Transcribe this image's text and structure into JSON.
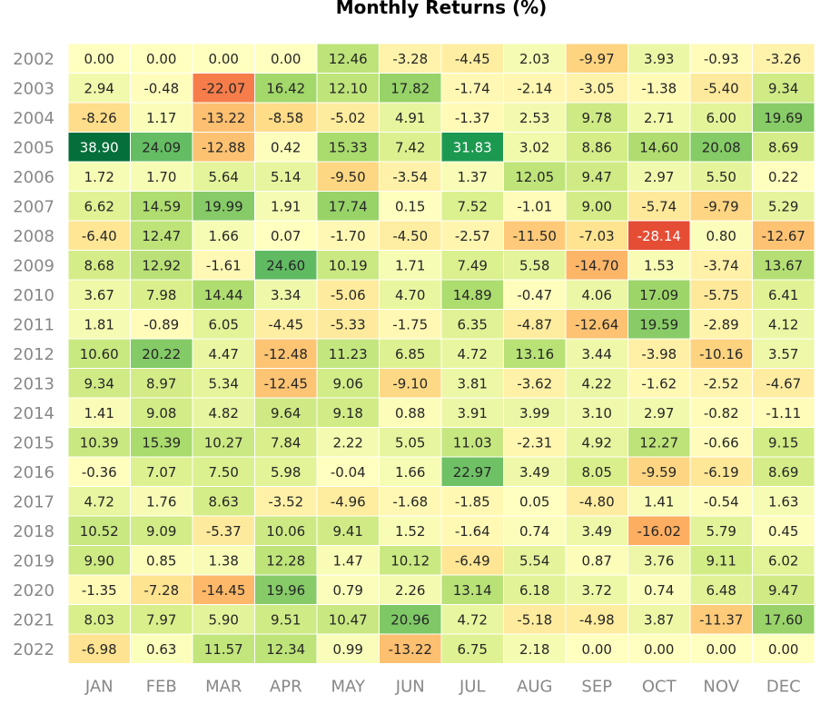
{
  "chart_data": {
    "type": "heatmap",
    "title": "Monthly Returns (%)",
    "xlabel": "",
    "ylabel": "",
    "x": [
      "JAN",
      "FEB",
      "MAR",
      "APR",
      "MAY",
      "JUN",
      "JUL",
      "AUG",
      "SEP",
      "OCT",
      "NOV",
      "DEC"
    ],
    "y": [
      "2002",
      "2003",
      "2004",
      "2005",
      "2006",
      "2007",
      "2008",
      "2009",
      "2010",
      "2011",
      "2012",
      "2013",
      "2014",
      "2015",
      "2016",
      "2017",
      "2018",
      "2019",
      "2020",
      "2021",
      "2022"
    ],
    "values": [
      [
        0.0,
        0.0,
        0.0,
        0.0,
        12.46,
        -3.28,
        -4.45,
        2.03,
        -9.97,
        3.93,
        -0.93,
        -3.26
      ],
      [
        2.94,
        -0.48,
        -22.07,
        16.42,
        12.1,
        17.82,
        -1.74,
        -2.14,
        -3.05,
        -1.38,
        -5.4,
        9.34
      ],
      [
        -8.26,
        1.17,
        -13.22,
        -8.58,
        -5.02,
        4.91,
        -1.37,
        2.53,
        9.78,
        2.71,
        6.0,
        19.69
      ],
      [
        38.9,
        24.09,
        -12.88,
        0.42,
        15.33,
        7.42,
        31.83,
        3.02,
        8.86,
        14.6,
        20.08,
        8.69
      ],
      [
        1.72,
        1.7,
        5.64,
        5.14,
        -9.5,
        -3.54,
        1.37,
        12.05,
        9.47,
        2.97,
        5.5,
        0.22
      ],
      [
        6.62,
        14.59,
        19.99,
        1.91,
        17.74,
        0.15,
        7.52,
        -1.01,
        9.0,
        -5.74,
        -9.79,
        5.29
      ],
      [
        -6.4,
        12.47,
        1.66,
        0.07,
        -1.7,
        -4.5,
        -2.57,
        -11.5,
        -7.03,
        -28.14,
        0.8,
        -12.67
      ],
      [
        8.68,
        12.92,
        -1.61,
        24.6,
        10.19,
        1.71,
        7.49,
        5.58,
        -14.7,
        1.53,
        -3.74,
        13.67
      ],
      [
        3.67,
        7.98,
        14.44,
        3.34,
        -5.06,
        4.7,
        14.89,
        -0.47,
        4.06,
        17.09,
        -5.75,
        6.41
      ],
      [
        1.81,
        -0.89,
        6.05,
        -4.45,
        -5.33,
        -1.75,
        6.35,
        -4.87,
        -12.64,
        19.59,
        -2.89,
        4.12
      ],
      [
        10.6,
        20.22,
        4.47,
        -12.48,
        11.23,
        6.85,
        4.72,
        13.16,
        3.44,
        -3.98,
        -10.16,
        3.57
      ],
      [
        9.34,
        8.97,
        5.34,
        -12.45,
        9.06,
        -9.1,
        3.81,
        -3.62,
        4.22,
        -1.62,
        -2.52,
        -4.67
      ],
      [
        1.41,
        9.08,
        4.82,
        9.64,
        9.18,
        0.88,
        3.91,
        3.99,
        3.1,
        2.97,
        -0.82,
        -1.11
      ],
      [
        10.39,
        15.39,
        10.27,
        7.84,
        2.22,
        5.05,
        11.03,
        -2.31,
        4.92,
        12.27,
        -0.66,
        9.15
      ],
      [
        -0.36,
        7.07,
        7.5,
        5.98,
        -0.04,
        1.66,
        22.97,
        3.49,
        8.05,
        -9.59,
        -6.19,
        8.69
      ],
      [
        4.72,
        1.76,
        8.63,
        -3.52,
        -4.96,
        -1.68,
        -1.85,
        0.05,
        -4.8,
        1.41,
        -0.54,
        1.63
      ],
      [
        10.52,
        9.09,
        -5.37,
        10.06,
        9.41,
        1.52,
        -1.64,
        0.74,
        3.49,
        -16.02,
        5.79,
        0.45
      ],
      [
        9.9,
        0.85,
        1.38,
        12.28,
        1.47,
        10.12,
        -6.49,
        5.54,
        0.87,
        3.76,
        9.11,
        6.02
      ],
      [
        -1.35,
        -7.28,
        -14.45,
        19.96,
        0.79,
        2.26,
        13.14,
        6.18,
        3.72,
        0.74,
        6.48,
        9.47
      ],
      [
        8.03,
        7.97,
        5.9,
        9.51,
        10.47,
        20.96,
        4.72,
        -5.18,
        -4.98,
        3.87,
        -11.37,
        17.6
      ],
      [
        -6.98,
        0.63,
        11.57,
        12.34,
        0.99,
        -13.22,
        6.75,
        2.18,
        0.0,
        0.0,
        0.0,
        0.0
      ]
    ],
    "colormap": "RdYlGn",
    "color_range": [
      -40,
      40
    ],
    "grid": false,
    "legend": "none",
    "colors": {
      "tick_label": "#888888",
      "cell_text_dark": "#262626",
      "cell_text_light": "#ffffff",
      "cell_border": "#ffffff"
    }
  }
}
